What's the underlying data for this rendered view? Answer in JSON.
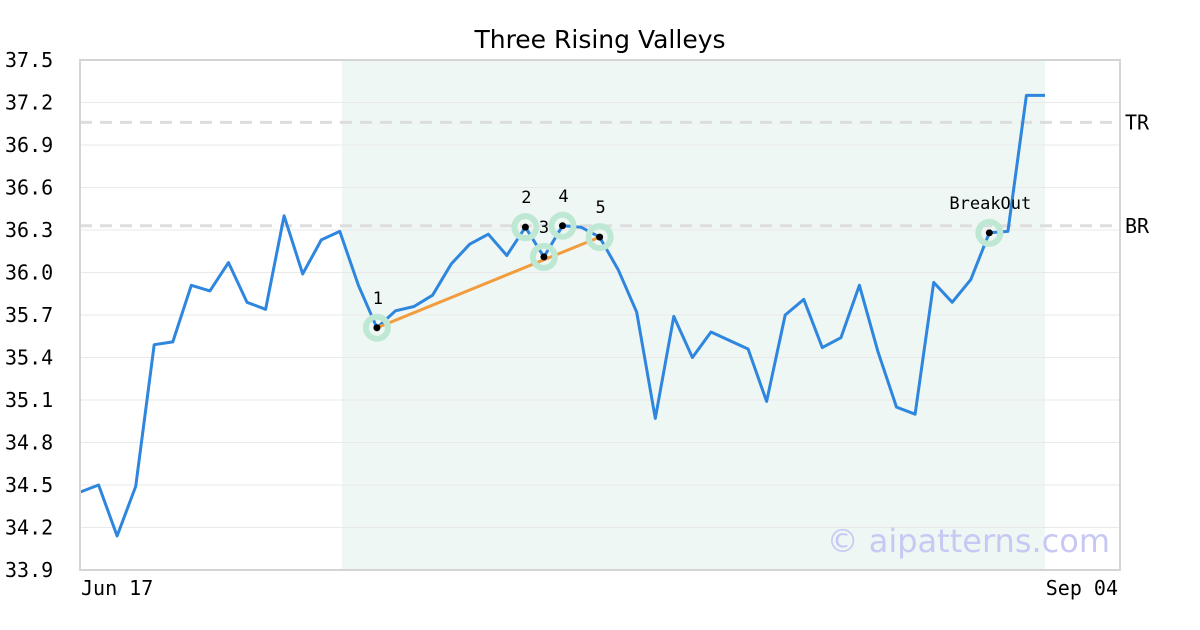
{
  "chart_data": {
    "type": "line",
    "title": "Three Rising Valleys",
    "x_range": [
      "Jun 17",
      "Sep 04"
    ],
    "ylim": [
      33.9,
      37.5
    ],
    "y_ticks": [
      "33.9",
      "34.2",
      "34.5",
      "34.8",
      "35.1",
      "35.4",
      "35.7",
      "36.0",
      "36.3",
      "36.6",
      "36.9",
      "37.2",
      "37.5"
    ],
    "grid": "horizontal",
    "series": [
      {
        "color": "#2e86de",
        "values": [
          34.45,
          34.5,
          34.14,
          34.49,
          35.49,
          35.51,
          35.91,
          35.87,
          36.07,
          35.79,
          35.74,
          36.4,
          35.99,
          36.23,
          36.29,
          35.91,
          35.61,
          35.73,
          35.76,
          35.84,
          36.06,
          36.2,
          36.27,
          36.12,
          36.32,
          36.11,
          36.33,
          36.32,
          36.25,
          36.02,
          35.72,
          34.97,
          35.69,
          35.4,
          35.58,
          35.52,
          35.46,
          35.09,
          35.7,
          35.81,
          35.47,
          35.54,
          35.91,
          35.44,
          35.05,
          35.0,
          35.93,
          35.79,
          35.95,
          36.28,
          36.29,
          37.25,
          37.25
        ]
      }
    ],
    "highlight_range_index": [
      14,
      52
    ],
    "levels": [
      {
        "label": "TR",
        "value": 37.06
      },
      {
        "label": "BR",
        "value": 36.33
      }
    ],
    "pattern_points": [
      {
        "label": "1",
        "index": 16,
        "value": 35.61
      },
      {
        "label": "2",
        "index": 24,
        "value": 36.32
      },
      {
        "label": "3",
        "index": 25,
        "value": 36.11
      },
      {
        "label": "4",
        "index": 26,
        "value": 36.33
      },
      {
        "label": "5",
        "index": 28,
        "value": 36.25
      },
      {
        "label": "BreakOut",
        "index": 49,
        "value": 36.28
      }
    ],
    "trendline": {
      "from_index": 16,
      "to_index": 28,
      "color": "#f39c3d"
    },
    "colors": {
      "line": "#2e86de",
      "trendline": "#f39c3d",
      "highlight": "#eef7f3",
      "marker_halo": "#bfe8d4",
      "level": "#dddddd"
    }
  },
  "watermark": "© aipatterns.com"
}
